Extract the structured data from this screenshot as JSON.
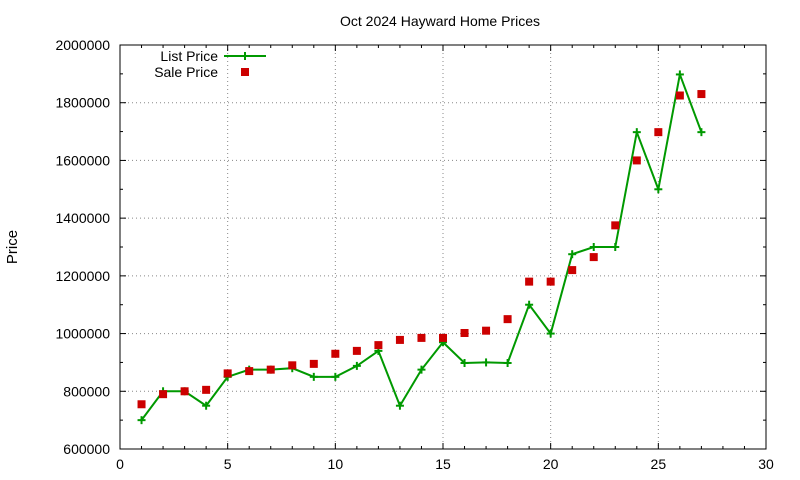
{
  "chart_data": {
    "type": "scatter",
    "title": "Oct 2024 Hayward Home Prices",
    "xlabel": "",
    "ylabel": "Price",
    "xlim": [
      0,
      30
    ],
    "ylim": [
      600000,
      2000000
    ],
    "x_ticks": [
      0,
      5,
      10,
      15,
      20,
      25,
      30
    ],
    "y_ticks": [
      600000,
      800000,
      1000000,
      1200000,
      1400000,
      1600000,
      1800000,
      2000000
    ],
    "grid": true,
    "legend_position": "top-left",
    "series": [
      {
        "name": "List Price",
        "style": "linespoints",
        "marker": "plus",
        "color": "#009900",
        "x": [
          1,
          2,
          3,
          4,
          5,
          6,
          7,
          8,
          9,
          10,
          11,
          12,
          13,
          14,
          15,
          16,
          17,
          18,
          19,
          20,
          21,
          22,
          23,
          24,
          25,
          26,
          27
        ],
        "y": [
          700000,
          800000,
          800000,
          750000,
          850000,
          875000,
          875000,
          880000,
          850000,
          850000,
          888000,
          940000,
          750000,
          875000,
          970000,
          898000,
          900000,
          898000,
          1100000,
          1000000,
          1275000,
          1300000,
          1300000,
          1698000,
          1500000,
          1898000,
          1698000
        ]
      },
      {
        "name": "Sale Price",
        "style": "points",
        "marker": "square",
        "color": "#cc0000",
        "x": [
          1,
          2,
          3,
          4,
          5,
          6,
          7,
          8,
          9,
          10,
          11,
          12,
          13,
          14,
          15,
          16,
          17,
          18,
          19,
          20,
          21,
          22,
          23,
          24,
          25,
          26,
          27
        ],
        "y": [
          755000,
          790000,
          800000,
          805000,
          862000,
          870000,
          875000,
          890000,
          895000,
          930000,
          940000,
          960000,
          978000,
          985000,
          985000,
          1002000,
          1010000,
          1050000,
          1180000,
          1180000,
          1220000,
          1265000,
          1375000,
          1600000,
          1698000,
          1825000,
          1830000
        ]
      }
    ]
  }
}
